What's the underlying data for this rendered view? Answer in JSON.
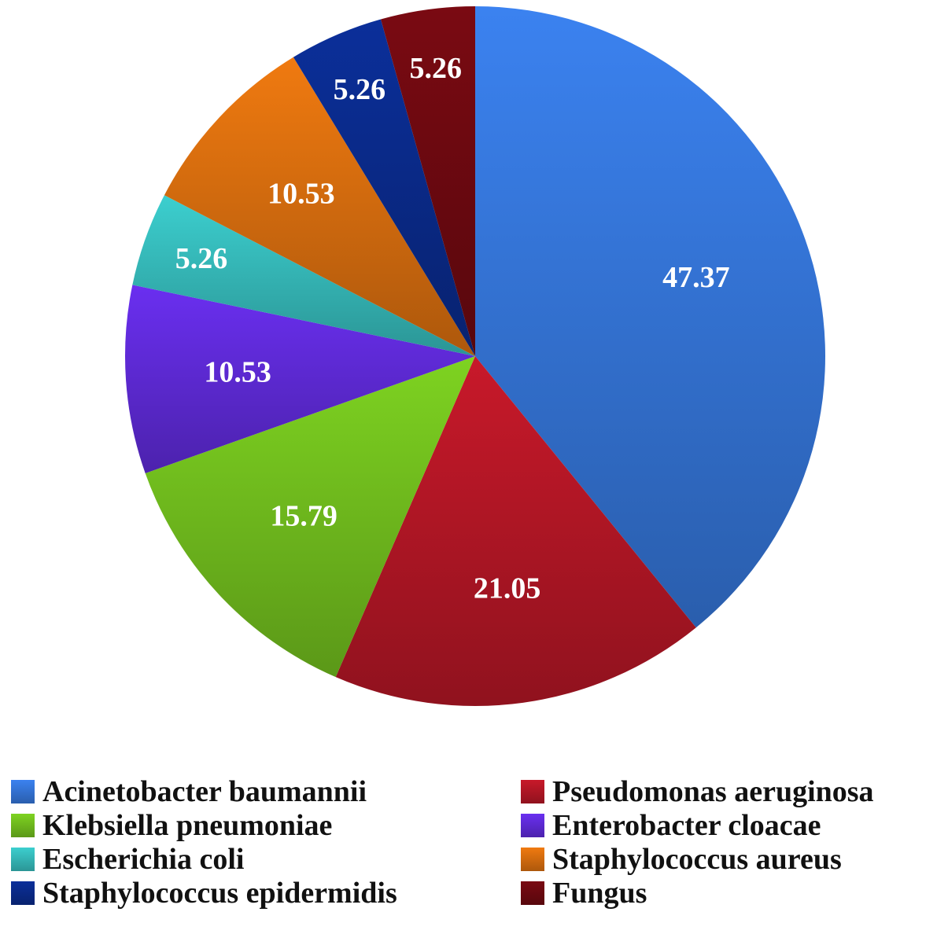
{
  "chart_data": {
    "type": "pie",
    "start_angle": "12 o'clock",
    "direction": "clockwise",
    "legend_placement": "bottom",
    "slices": [
      {
        "name": "Acinetobacter baumannii",
        "value": 47.37,
        "label": "47.37",
        "color": "#3b82f0"
      },
      {
        "name": "Pseudomonas aeruginosa",
        "value": 21.05,
        "label": "21.05",
        "color": "#c8192a"
      },
      {
        "name": "Klebsiella pneumoniae",
        "value": 15.79,
        "label": "15.79",
        "color": "#7ed321"
      },
      {
        "name": "Enterobacter cloacae",
        "value": 10.53,
        "label": "10.53",
        "color": "#6a2ff0"
      },
      {
        "name": "Escherichia coli",
        "value": 5.26,
        "label": "5.26",
        "color": "#3ccfcf"
      },
      {
        "name": "Staphylococcus aureus",
        "value": 10.53,
        "label": "10.53",
        "color": "#f07a10"
      },
      {
        "name": "Staphylococcus epidermidis",
        "value": 5.26,
        "label": "5.26",
        "color": "#0b2f9a"
      },
      {
        "name": "Fungus",
        "value": 5.26,
        "label": "5.26",
        "color": "#7a0a12"
      }
    ]
  }
}
